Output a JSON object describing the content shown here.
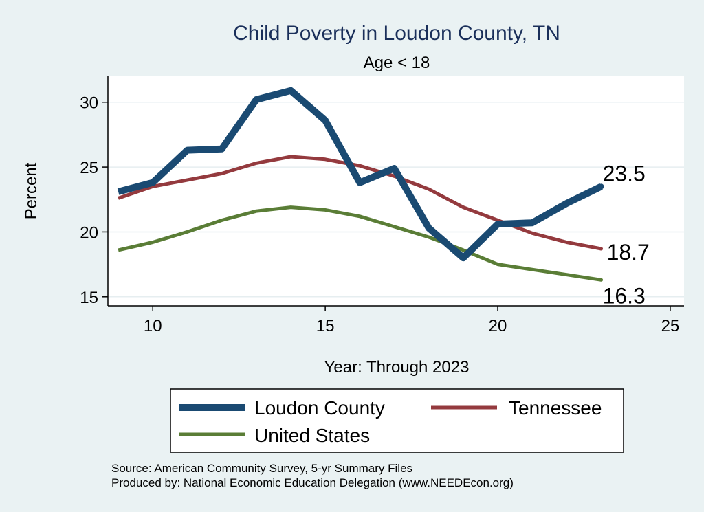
{
  "chart_data": {
    "type": "line",
    "title": "Child Poverty in Loudon County, TN",
    "subtitle": "Age < 18",
    "xlabel": "Year: Through 2023",
    "ylabel": "Percent",
    "xlim": [
      8.7,
      25.4
    ],
    "ylim": [
      14.3,
      32.0
    ],
    "xticks": [
      10,
      15,
      20,
      25
    ],
    "yticks": [
      15,
      20,
      25,
      30
    ],
    "x": [
      9,
      10,
      11,
      12,
      13,
      14,
      15,
      16,
      17,
      18,
      19,
      20,
      21,
      22,
      23
    ],
    "series": [
      {
        "name": "Loudon County",
        "color": "#1a4a72",
        "values": [
          23.1,
          23.8,
          26.3,
          26.4,
          30.2,
          30.9,
          28.6,
          23.8,
          24.9,
          20.3,
          18.0,
          20.6,
          20.7,
          22.2,
          23.5
        ],
        "end_label": "23.5"
      },
      {
        "name": "Tennessee",
        "color": "#943a3e",
        "values": [
          22.6,
          23.5,
          24.0,
          24.5,
          25.3,
          25.8,
          25.6,
          25.1,
          24.3,
          23.3,
          21.9,
          20.9,
          19.9,
          19.2,
          18.7
        ],
        "end_label": "18.7"
      },
      {
        "name": "United States",
        "color": "#5a7d36",
        "values": [
          18.6,
          19.2,
          20.0,
          20.9,
          21.6,
          21.9,
          21.7,
          21.2,
          20.4,
          19.6,
          18.6,
          17.5,
          17.1,
          16.7,
          16.3
        ],
        "end_label": "16.3"
      }
    ],
    "source_lines": [
      "Source: American Community Survey, 5-yr Summary Files",
      "Produced by: National Economic Education Delegation (www.NEEDEcon.org)"
    ]
  }
}
